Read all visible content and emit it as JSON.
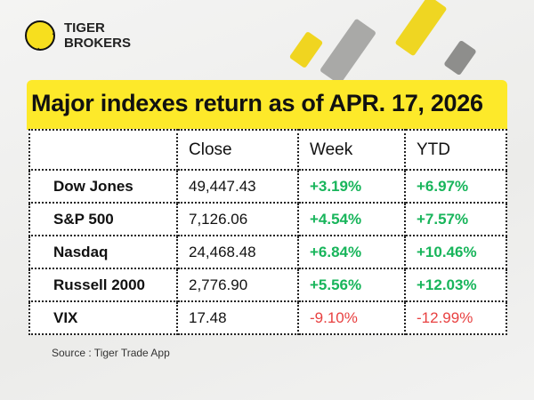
{
  "brand": {
    "line1": "TIGER",
    "line2": "BROKERS"
  },
  "title": "Major indexes return as of APR. 17, 2026",
  "table": {
    "headers": [
      "",
      "Close",
      "Week",
      "YTD"
    ],
    "rows": [
      {
        "name": "Dow Jones",
        "close": "49,447.43",
        "week": "+3.19%",
        "ytd": "+6.97%"
      },
      {
        "name": "S&P 500",
        "close": "7,126.06",
        "week": "+4.54%",
        "ytd": "+7.57%"
      },
      {
        "name": "Nasdaq",
        "close": "24,468.48",
        "week": "+6.84%",
        "ytd": "+10.46%"
      },
      {
        "name": "Russell 2000",
        "close": "2,776.90",
        "week": "+5.56%",
        "ytd": "+12.03%"
      },
      {
        "name": "VIX",
        "close": "17.48",
        "week": "-9.10%",
        "ytd": "-12.99%"
      }
    ]
  },
  "source": "Source : Tiger Trade App",
  "colors": {
    "accent": "#fde92a",
    "positive": "#18b55b",
    "negative": "#e84141"
  }
}
